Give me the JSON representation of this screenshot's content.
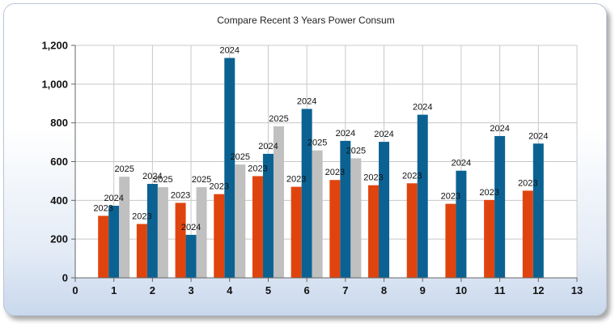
{
  "chart_data": {
    "type": "bar",
    "title": "Compare Recent 3 Years Power Consum",
    "xlabel": "",
    "ylabel": "",
    "xlim": [
      0,
      13
    ],
    "ylim": [
      0,
      1200
    ],
    "x_ticks": [
      "0",
      "1",
      "2",
      "3",
      "4",
      "5",
      "6",
      "7",
      "8",
      "9",
      "10",
      "11",
      "12",
      "13"
    ],
    "y_ticks": [
      "0",
      "200",
      "400",
      "600",
      "800",
      "1,000",
      "1,200"
    ],
    "grid": true,
    "legend": "none",
    "categories": [
      1,
      2,
      3,
      4,
      5,
      6,
      7,
      8,
      9,
      10,
      11,
      12
    ],
    "series": [
      {
        "label": "2023",
        "color": "#e0440e",
        "values": [
          320,
          278,
          387,
          432,
          525,
          470,
          505,
          478,
          488,
          382,
          402,
          450
        ]
      },
      {
        "label": "2024",
        "color": "#0b6292",
        "values": [
          372,
          485,
          222,
          1135,
          640,
          872,
          707,
          702,
          842,
          553,
          732,
          693
        ]
      },
      {
        "label": "2025",
        "color": "#c0c0c0",
        "values": [
          522,
          468,
          468,
          585,
          782,
          658,
          617,
          null,
          null,
          null,
          null,
          null
        ]
      }
    ]
  }
}
